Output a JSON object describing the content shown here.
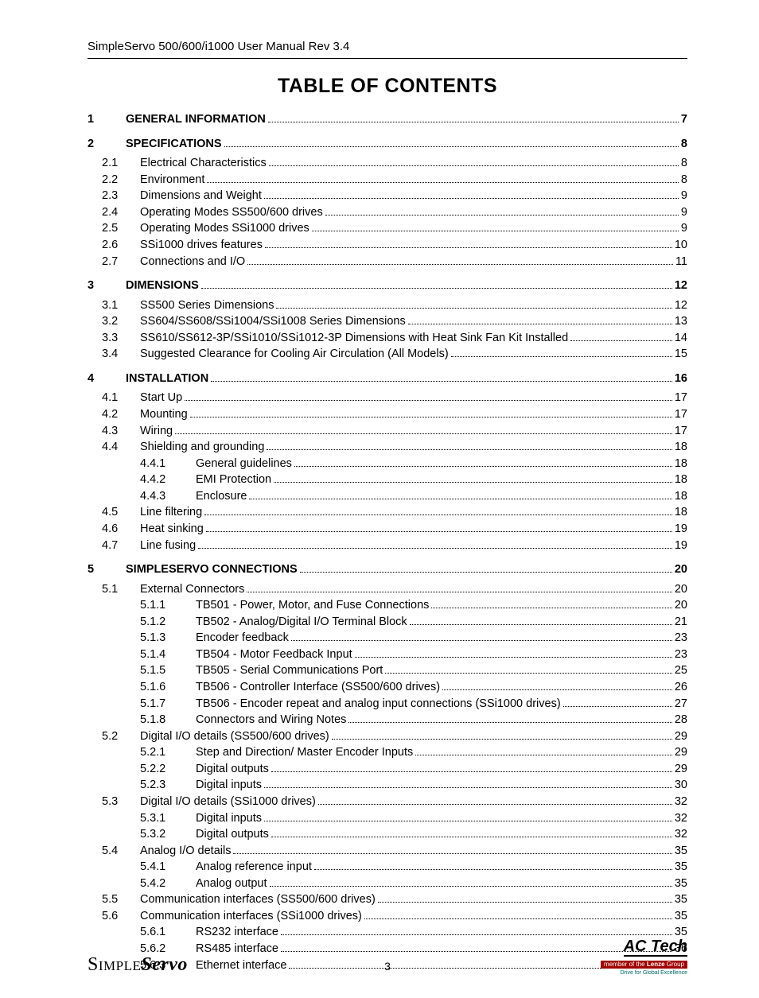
{
  "header": "SimpleServo 500/600/i1000 User Manual    Rev 3.4",
  "title": "TABLE OF CONTENTS",
  "page_number": "3",
  "footer": {
    "brand_thin": "Simple",
    "brand_bold": "Servo",
    "ac": "AC Tech",
    "sub1_a": "member of the ",
    "sub1_b": "Lenze",
    "sub1_c": " Group",
    "sub2": "Drive for Global Excellence"
  },
  "toc": [
    {
      "level": 1,
      "num": "1",
      "label": "GENERAL INFORMATION",
      "page": "7",
      "gapAfter": true
    },
    {
      "level": 1,
      "num": "2",
      "label": "SPECIFICATIONS",
      "page": "8",
      "gapAfter": false,
      "subGapAfter": true
    },
    {
      "level": 2,
      "num": "2.1",
      "label": "Electrical Characteristics",
      "page": "8"
    },
    {
      "level": 2,
      "num": "2.2",
      "label": "Environment",
      "page": "8"
    },
    {
      "level": 2,
      "num": "2.3",
      "label": "Dimensions and Weight",
      "page": "9"
    },
    {
      "level": 2,
      "num": "2.4",
      "label": "Operating Modes SS500/600 drives",
      "page": "9"
    },
    {
      "level": 2,
      "num": "2.5",
      "label": "Operating Modes SSi1000 drives",
      "page": "9"
    },
    {
      "level": 2,
      "num": "2.6",
      "label": "SSi1000 drives features",
      "page": "10"
    },
    {
      "level": 2,
      "num": "2.7",
      "label": "Connections and I/O",
      "page": "11",
      "gapAfter": true
    },
    {
      "level": 1,
      "num": "3",
      "label": "DIMENSIONS",
      "page": "12",
      "subGapAfter": true
    },
    {
      "level": 2,
      "num": "3.1",
      "label": "SS500 Series Dimensions",
      "page": "12"
    },
    {
      "level": 2,
      "num": "3.2",
      "label": "SS604/SS608/SSi1004/SSi1008 Series Dimensions",
      "page": "13"
    },
    {
      "level": 2,
      "num": "3.3",
      "label": "SS610/SS612-3P/SSi1010/SSi1012-3P Dimensions with Heat Sink Fan Kit Installed",
      "page": "14"
    },
    {
      "level": 2,
      "num": "3.4",
      "label": "Suggested Clearance for Cooling Air Circulation (All Models)",
      "page": "15",
      "gapAfter": true
    },
    {
      "level": 1,
      "num": "4",
      "label": "INSTALLATION",
      "page": "16",
      "subGapAfter": true
    },
    {
      "level": 2,
      "num": "4.1",
      "label": "Start Up",
      "page": "17"
    },
    {
      "level": 2,
      "num": "4.2",
      "label": "Mounting",
      "page": "17"
    },
    {
      "level": 2,
      "num": "4.3",
      "label": "Wiring",
      "page": "17"
    },
    {
      "level": 2,
      "num": "4.4",
      "label": "Shielding and grounding",
      "page": "18"
    },
    {
      "level": 3,
      "num": "4.4.1",
      "label": "General guidelines",
      "page": "18"
    },
    {
      "level": 3,
      "num": "4.4.2",
      "label": "EMI Protection",
      "page": "18"
    },
    {
      "level": 3,
      "num": "4.4.3",
      "label": "Enclosure",
      "page": "18"
    },
    {
      "level": 2,
      "num": "4.5",
      "label": "Line filtering",
      "page": "18"
    },
    {
      "level": 2,
      "num": "4.6",
      "label": "Heat sinking",
      "page": "19"
    },
    {
      "level": 2,
      "num": "4.7",
      "label": "Line fusing",
      "page": "19",
      "gapAfter": true
    },
    {
      "level": 1,
      "num": "5",
      "label": "SIMPLESERVO CONNECTIONS",
      "page": "20",
      "subGapAfter": true
    },
    {
      "level": 2,
      "num": "5.1",
      "label": "External Connectors",
      "page": "20"
    },
    {
      "level": 3,
      "num": "5.1.1",
      "label": "TB501 - Power, Motor, and Fuse Connections",
      "page": "20"
    },
    {
      "level": 3,
      "num": "5.1.2",
      "label": "TB502 - Analog/Digital I/O Terminal Block",
      "page": "21"
    },
    {
      "level": 3,
      "num": "5.1.3",
      "label": "Encoder feedback",
      "page": "23"
    },
    {
      "level": 3,
      "num": "5.1.4",
      "label": "TB504 - Motor Feedback Input",
      "page": "23"
    },
    {
      "level": 3,
      "num": "5.1.5",
      "label": "TB505 - Serial Communications Port",
      "page": "25"
    },
    {
      "level": 3,
      "num": "5.1.6",
      "label": "TB506 - Controller Interface (SS500/600 drives)",
      "page": "26"
    },
    {
      "level": 3,
      "num": "5.1.7",
      "label": "TB506 - Encoder repeat and analog input connections (SSi1000 drives)",
      "page": "27"
    },
    {
      "level": 3,
      "num": "5.1.8",
      "label": "Connectors and Wiring Notes",
      "page": "28"
    },
    {
      "level": 2,
      "num": "5.2",
      "label": "Digital I/O details (SS500/600 drives)",
      "page": "29"
    },
    {
      "level": 3,
      "num": "5.2.1",
      "label": "Step and Direction/ Master Encoder Inputs",
      "page": "29"
    },
    {
      "level": 3,
      "num": "5.2.2",
      "label": "Digital outputs",
      "page": "29"
    },
    {
      "level": 3,
      "num": "5.2.3",
      "label": "Digital inputs",
      "page": "30"
    },
    {
      "level": 2,
      "num": "5.3",
      "label": "Digital I/O details (SSi1000 drives)",
      "page": "32"
    },
    {
      "level": 3,
      "num": "5.3.1",
      "label": "Digital inputs",
      "page": "32"
    },
    {
      "level": 3,
      "num": "5.3.2",
      "label": "Digital outputs",
      "page": "32"
    },
    {
      "level": 2,
      "num": "5.4",
      "label": "Analog I/O details",
      "page": "35"
    },
    {
      "level": 3,
      "num": "5.4.1",
      "label": "Analog reference input",
      "page": "35"
    },
    {
      "level": 3,
      "num": "5.4.2",
      "label": "Analog output",
      "page": "35"
    },
    {
      "level": 2,
      "num": "5.5",
      "label": "Communication interfaces (SS500/600 drives)",
      "page": "35"
    },
    {
      "level": 2,
      "num": "5.6",
      "label": "Communication interfaces (SSi1000 drives)",
      "page": "35"
    },
    {
      "level": 3,
      "num": "5.6.1",
      "label": "RS232 interface",
      "page": "35"
    },
    {
      "level": 3,
      "num": "5.6.2",
      "label": "RS485 interface",
      "page": "36"
    },
    {
      "level": 3,
      "num": "5.6.3",
      "label": "Ethernet interface",
      "page": "37"
    }
  ]
}
